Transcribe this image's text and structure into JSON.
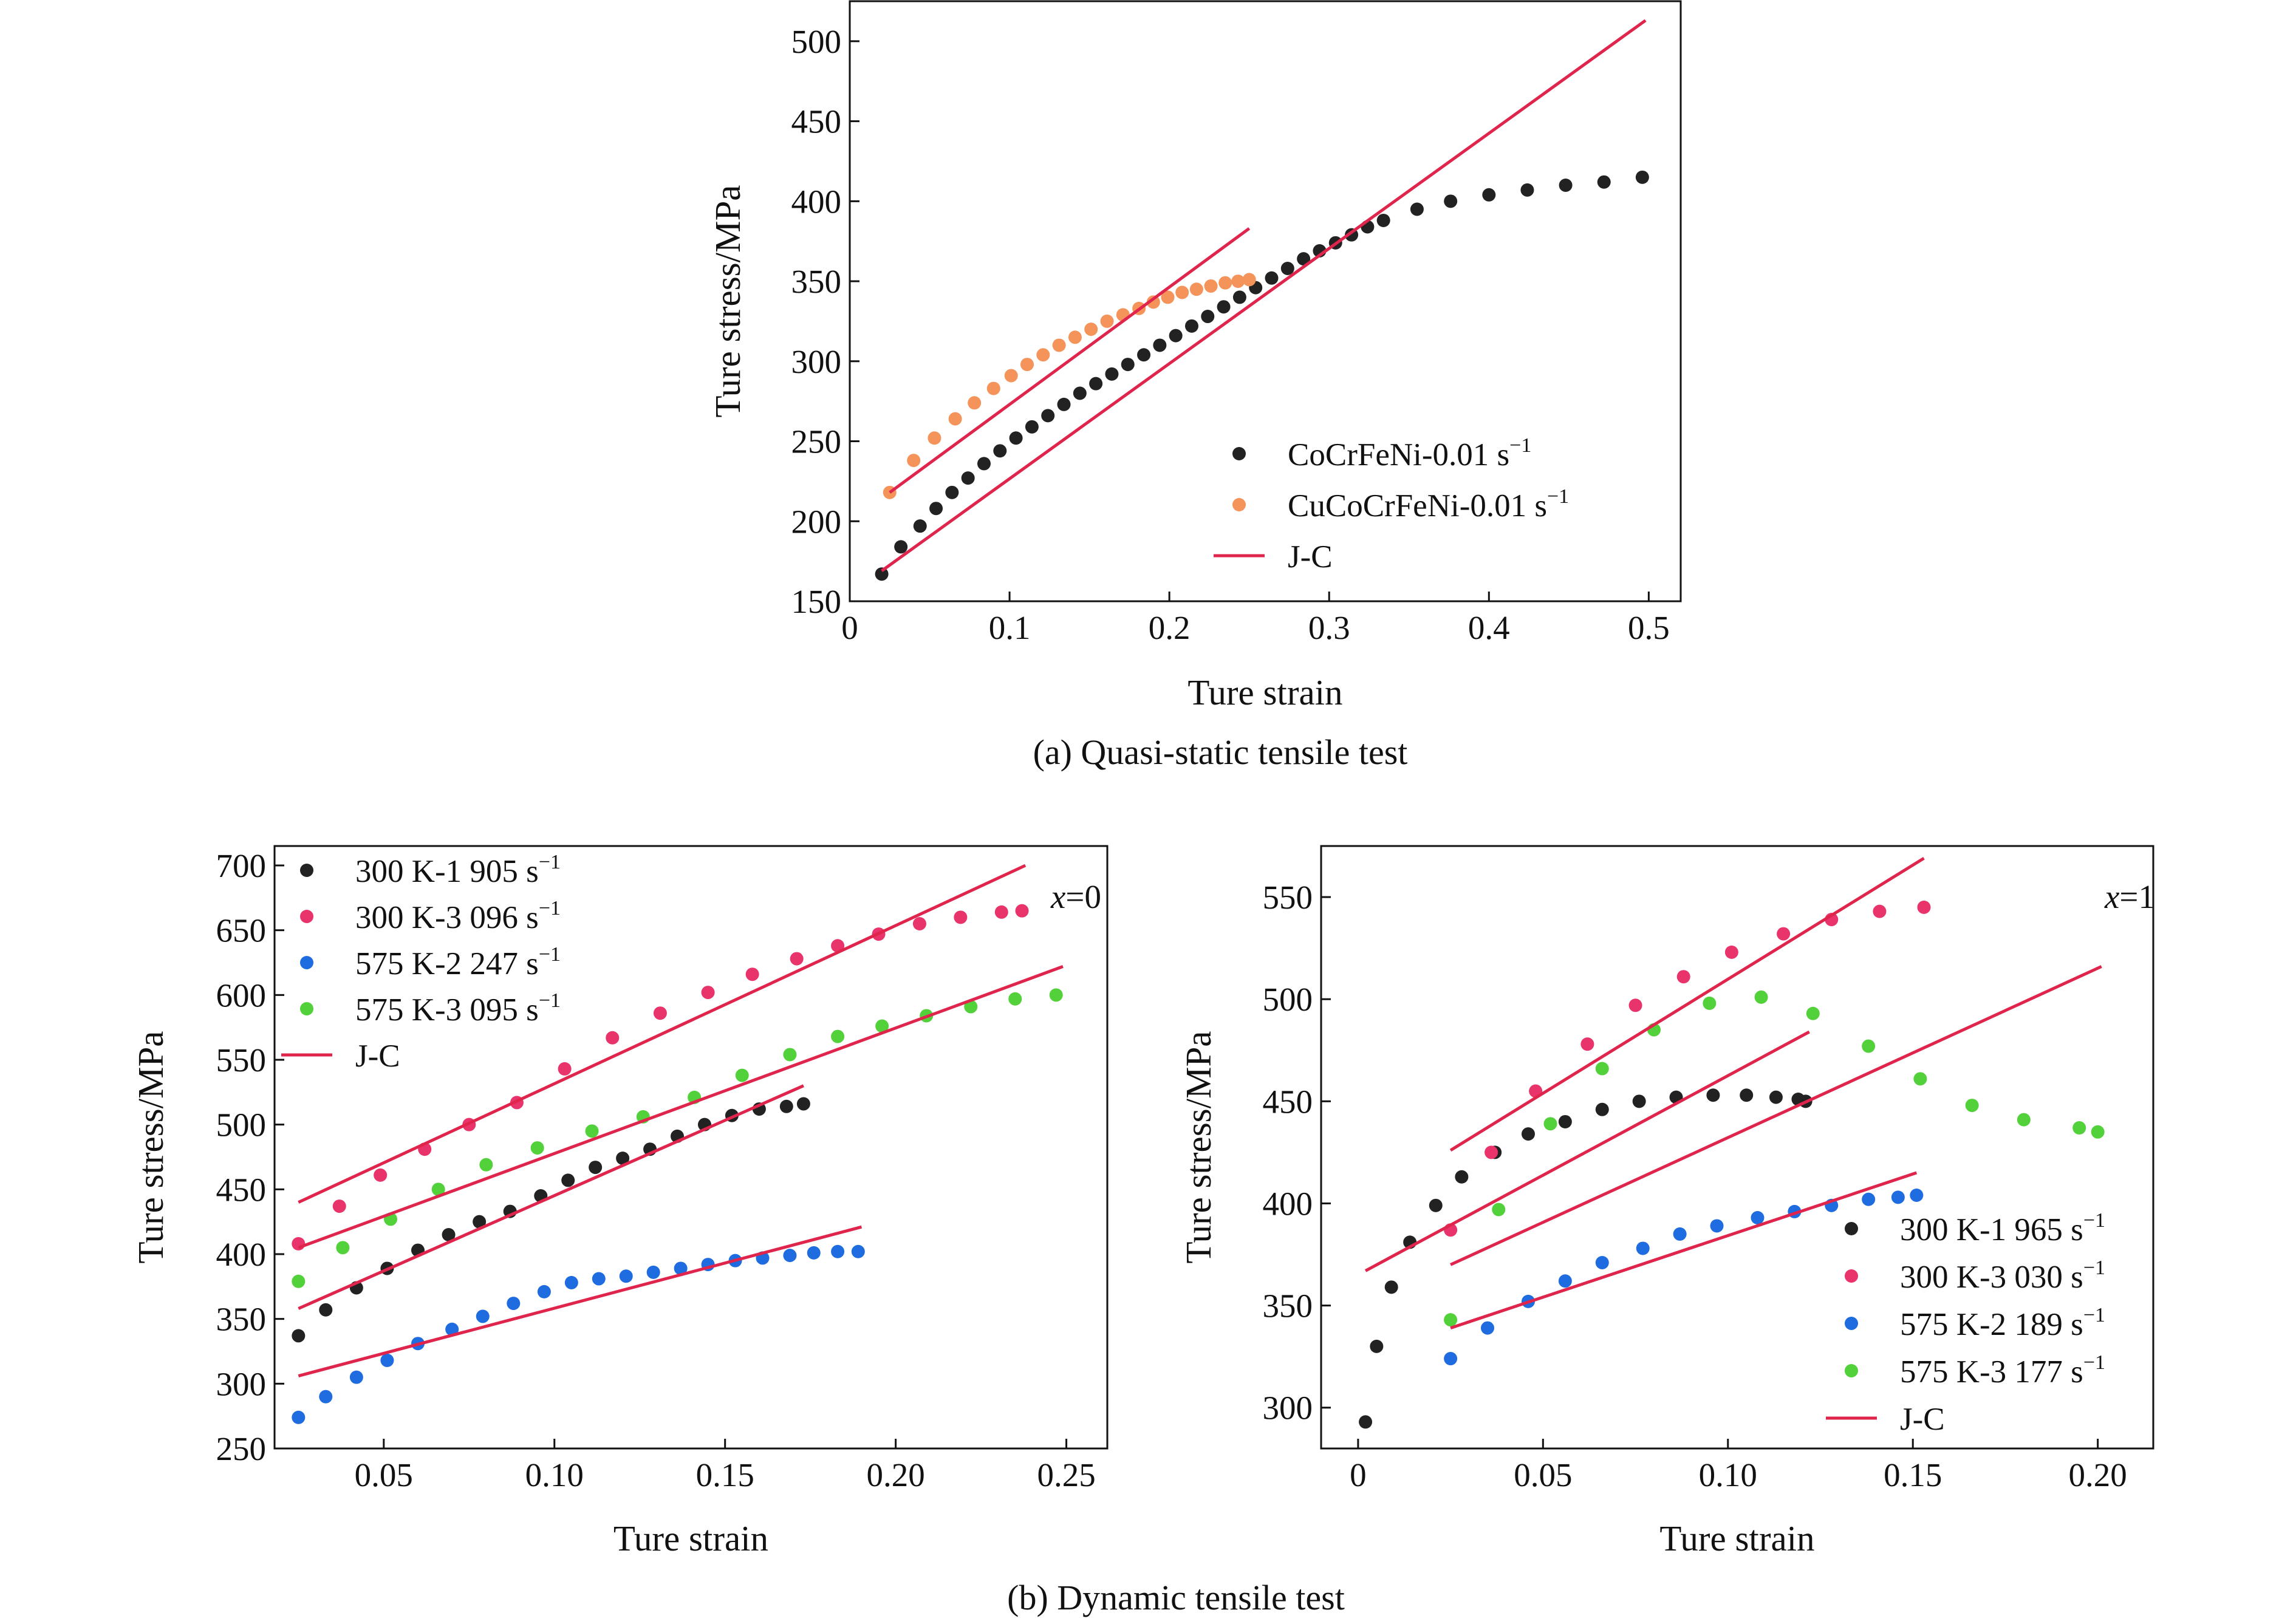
{
  "figure": {
    "caption_a": "(a) Quasi-static tensile test",
    "caption_b": "(b) Dynamic tensile test"
  },
  "chart_data": [
    {
      "id": "a",
      "type": "scatter",
      "title": "",
      "xlabel": "Ture strain",
      "ylabel": "Ture stress/MPa",
      "xlim": [
        0,
        0.52
      ],
      "ylim": [
        150,
        525
      ],
      "xticks": [
        0,
        0.1,
        0.2,
        0.3,
        0.4,
        0.5
      ],
      "xtick_labels": [
        "0",
        "0.1",
        "0.2",
        "0.3",
        "0.4",
        "0.5"
      ],
      "yticks": [
        150,
        200,
        250,
        300,
        350,
        400,
        450,
        500
      ],
      "ytick_labels": [
        "150",
        "200",
        "250",
        "300",
        "350",
        "400",
        "450",
        "500"
      ],
      "legend_position": "bottom-right",
      "annotation": "",
      "series": [
        {
          "name": "CoCrFeNi-0.01 s",
          "sup": "−1",
          "color": "#222222",
          "x": [
            0.02,
            0.032,
            0.044,
            0.054,
            0.064,
            0.074,
            0.084,
            0.094,
            0.104,
            0.114,
            0.124,
            0.134,
            0.144,
            0.154,
            0.164,
            0.174,
            0.184,
            0.194,
            0.204,
            0.214,
            0.224,
            0.234,
            0.244,
            0.254,
            0.264,
            0.274,
            0.284,
            0.294,
            0.304,
            0.314,
            0.324,
            0.334,
            0.355,
            0.376,
            0.4,
            0.424,
            0.448,
            0.472,
            0.496
          ],
          "y": [
            167,
            184,
            197,
            208,
            218,
            227,
            236,
            244,
            252,
            259,
            266,
            273,
            280,
            286,
            292,
            298,
            304,
            310,
            316,
            322,
            328,
            334,
            340,
            346,
            352,
            358,
            364,
            369,
            374,
            379,
            384,
            388,
            395,
            400,
            404,
            407,
            410,
            412,
            415
          ]
        },
        {
          "name": "CuCoCrFeNi-0.01 s",
          "sup": "−1",
          "color": "#f4935a",
          "x": [
            0.025,
            0.04,
            0.053,
            0.066,
            0.078,
            0.09,
            0.101,
            0.111,
            0.121,
            0.131,
            0.141,
            0.151,
            0.161,
            0.171,
            0.181,
            0.19,
            0.199,
            0.208,
            0.217,
            0.226,
            0.235,
            0.243,
            0.25
          ],
          "y": [
            218,
            238,
            252,
            264,
            274,
            283,
            291,
            298,
            304,
            310,
            315,
            320,
            325,
            329,
            333,
            337,
            340,
            343,
            345,
            347,
            349,
            350,
            351
          ]
        }
      ],
      "fit_lines": [
        {
          "name": "J-C",
          "color": "#e0254d",
          "points": [
            [
              0.02,
              169
            ],
            [
              0.498,
              513
            ]
          ]
        },
        {
          "name": "J-C",
          "color": "#e0254d",
          "points": [
            [
              0.025,
              218
            ],
            [
              0.25,
              383
            ]
          ]
        }
      ],
      "fit_legend": "J-C"
    },
    {
      "id": "b-left",
      "type": "scatter",
      "title": "",
      "xlabel": "Ture strain",
      "ylabel": "Ture stress/MPa",
      "xlim": [
        0.018,
        0.262
      ],
      "ylim": [
        250,
        715
      ],
      "xticks": [
        0.05,
        0.1,
        0.15,
        0.2,
        0.25
      ],
      "xtick_labels": [
        "0.05",
        "0.10",
        "0.15",
        "0.20",
        "0.25"
      ],
      "yticks": [
        250,
        300,
        350,
        400,
        450,
        500,
        550,
        600,
        650,
        700
      ],
      "ytick_labels": [
        "250",
        "300",
        "350",
        "400",
        "450",
        "500",
        "550",
        "600",
        "650",
        "700"
      ],
      "legend_position": "top-left",
      "annotation": "x=0",
      "series": [
        {
          "name": "300 K-1 905 s",
          "sup": "−1",
          "color": "#222222",
          "x": [
            0.025,
            0.033,
            0.042,
            0.051,
            0.06,
            0.069,
            0.078,
            0.087,
            0.096,
            0.104,
            0.112,
            0.12,
            0.128,
            0.136,
            0.144,
            0.152,
            0.16,
            0.168,
            0.173
          ],
          "y": [
            337,
            357,
            374,
            389,
            403,
            415,
            425,
            433,
            445,
            457,
            467,
            474,
            481,
            491,
            500,
            507,
            512,
            514,
            516
          ]
        },
        {
          "name": "300 K-3 096 s",
          "sup": "−1",
          "color": "#e8336b",
          "x": [
            0.025,
            0.037,
            0.049,
            0.062,
            0.075,
            0.089,
            0.103,
            0.117,
            0.131,
            0.145,
            0.158,
            0.171,
            0.183,
            0.195,
            0.207,
            0.219,
            0.231,
            0.237
          ],
          "y": [
            408,
            437,
            461,
            481,
            500,
            517,
            543,
            567,
            586,
            602,
            616,
            628,
            638,
            647,
            655,
            660,
            664,
            665
          ]
        },
        {
          "name": "575 K-2 247 s",
          "sup": "−1",
          "color": "#1f6be0",
          "x": [
            0.025,
            0.033,
            0.042,
            0.051,
            0.06,
            0.07,
            0.079,
            0.088,
            0.097,
            0.105,
            0.113,
            0.121,
            0.129,
            0.137,
            0.145,
            0.153,
            0.161,
            0.169,
            0.176,
            0.183,
            0.189
          ],
          "y": [
            274,
            290,
            305,
            318,
            331,
            342,
            352,
            362,
            371,
            378,
            381,
            383,
            386,
            389,
            392,
            395,
            397,
            399,
            401,
            402,
            402
          ]
        },
        {
          "name": "575 K-3 095 s",
          "sup": "−1",
          "color": "#52d13a",
          "x": [
            0.025,
            0.038,
            0.052,
            0.066,
            0.08,
            0.095,
            0.111,
            0.126,
            0.141,
            0.155,
            0.169,
            0.183,
            0.196,
            0.209,
            0.222,
            0.235,
            0.247
          ],
          "y": [
            379,
            405,
            427,
            450,
            469,
            482,
            495,
            506,
            521,
            538,
            554,
            568,
            576,
            584,
            591,
            597,
            600
          ]
        }
      ],
      "fit_lines": [
        {
          "name": "J-C",
          "color": "#e0254d",
          "points": [
            [
              0.025,
              440
            ],
            [
              0.238,
              700
            ]
          ]
        },
        {
          "name": "J-C",
          "color": "#e0254d",
          "points": [
            [
              0.025,
              405
            ],
            [
              0.249,
              622
            ]
          ]
        },
        {
          "name": "J-C",
          "color": "#e0254d",
          "points": [
            [
              0.025,
              358
            ],
            [
              0.173,
              530
            ]
          ]
        },
        {
          "name": "J-C",
          "color": "#e0254d",
          "points": [
            [
              0.025,
              306
            ],
            [
              0.19,
              421
            ]
          ]
        }
      ],
      "fit_legend": "J-C"
    },
    {
      "id": "b-right",
      "type": "scatter",
      "title": "",
      "xlabel": "Ture strain",
      "ylabel": "Ture stress/MPa",
      "xlim": [
        -0.01,
        0.215
      ],
      "ylim": [
        280,
        575
      ],
      "xticks": [
        0,
        0.05,
        0.1,
        0.15,
        0.2
      ],
      "xtick_labels": [
        "0",
        "0.05",
        "0.10",
        "0.15",
        "0.20"
      ],
      "yticks": [
        300,
        350,
        400,
        450,
        500,
        550
      ],
      "ytick_labels": [
        "300",
        "350",
        "400",
        "450",
        "500",
        "550"
      ],
      "legend_position": "bottom-right",
      "annotation": "x=1",
      "series": [
        {
          "name": "300 K-1 965 s",
          "sup": "−1",
          "color": "#222222",
          "x": [
            0.002,
            0.005,
            0.009,
            0.014,
            0.021,
            0.028,
            0.037,
            0.046,
            0.056,
            0.066,
            0.076,
            0.086,
            0.096,
            0.105,
            0.113,
            0.119,
            0.121
          ],
          "y": [
            293,
            330,
            359,
            381,
            399,
            413,
            425,
            434,
            440,
            446,
            450,
            452,
            453,
            453,
            452,
            451,
            450
          ]
        },
        {
          "name": "300 K-3 030 s",
          "sup": "−1",
          "color": "#e8336b",
          "x": [
            0.025,
            0.036,
            0.048,
            0.062,
            0.075,
            0.088,
            0.101,
            0.115,
            0.128,
            0.141,
            0.153
          ],
          "y": [
            387,
            425,
            455,
            478,
            497,
            511,
            523,
            532,
            539,
            543,
            545
          ]
        },
        {
          "name": "575 K-2 189 s",
          "sup": "−1",
          "color": "#1f6be0",
          "x": [
            0.025,
            0.035,
            0.046,
            0.056,
            0.066,
            0.077,
            0.087,
            0.097,
            0.108,
            0.118,
            0.128,
            0.138,
            0.146,
            0.151
          ],
          "y": [
            324,
            339,
            352,
            362,
            371,
            378,
            385,
            389,
            393,
            396,
            399,
            402,
            403,
            404
          ]
        },
        {
          "name": "575 K-3 177 s",
          "sup": "−1",
          "color": "#52d13a",
          "x": [
            0.025,
            0.038,
            0.052,
            0.066,
            0.08,
            0.095,
            0.109,
            0.123,
            0.138,
            0.152,
            0.166,
            0.18,
            0.195,
            0.2
          ],
          "y": [
            343,
            397,
            439,
            466,
            485,
            498,
            501,
            493,
            477,
            461,
            448,
            441,
            437,
            435
          ]
        }
      ],
      "fit_lines": [
        {
          "name": "J-C",
          "color": "#e0254d",
          "points": [
            [
              0.025,
              426
            ],
            [
              0.153,
              569
            ]
          ]
        },
        {
          "name": "J-C",
          "color": "#e0254d",
          "points": [
            [
              0.002,
              367
            ],
            [
              0.122,
              484
            ]
          ]
        },
        {
          "name": "J-C",
          "color": "#e0254d",
          "points": [
            [
              0.025,
              370
            ],
            [
              0.201,
              516
            ]
          ]
        },
        {
          "name": "J-C",
          "color": "#e0254d",
          "points": [
            [
              0.025,
              339
            ],
            [
              0.151,
              415
            ]
          ]
        }
      ],
      "fit_legend": "J-C"
    }
  ]
}
